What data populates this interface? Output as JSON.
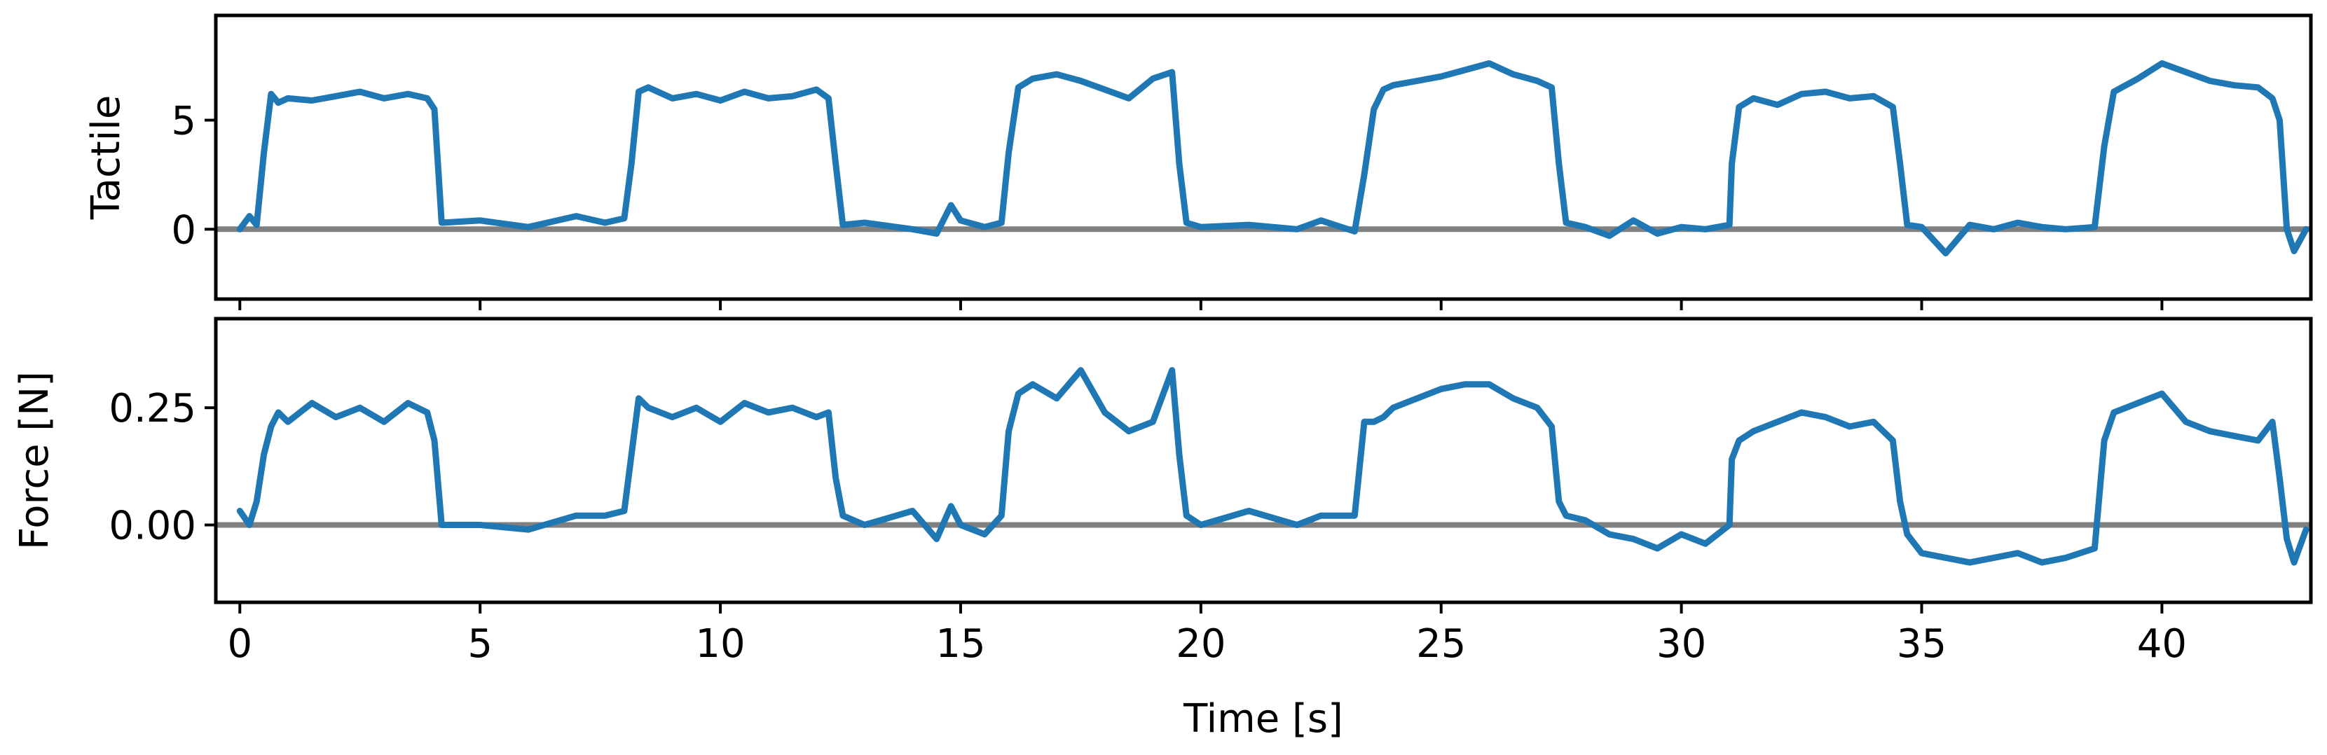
{
  "chart_data": [
    {
      "type": "line",
      "ylabel": "Tactile",
      "xlim": [
        -0.5,
        43.1
      ],
      "ylim": [
        -3.2,
        9.8
      ],
      "xticks": [
        0,
        5,
        10,
        15,
        20,
        25,
        30,
        35,
        40
      ],
      "yticks": [
        0,
        5
      ],
      "ytick_labels": [
        "0",
        "5"
      ],
      "show_xtick_labels": false,
      "grid": false,
      "colors": {
        "series": "#1f77b4",
        "baseline": "#808080"
      },
      "baseline": 0,
      "series": [
        {
          "x": [
            0.0,
            0.2,
            0.35,
            0.5,
            0.65,
            0.8,
            1.0,
            1.5,
            2.0,
            2.5,
            3.0,
            3.5,
            3.9,
            4.05,
            4.2,
            5.0,
            6.0,
            7.0,
            7.6,
            8.0,
            8.15,
            8.3,
            8.5,
            9.0,
            9.5,
            10.0,
            10.5,
            11.0,
            11.5,
            12.0,
            12.25,
            12.4,
            12.55,
            13.0,
            14.0,
            14.5,
            14.8,
            15.0,
            15.5,
            15.85,
            16.0,
            16.2,
            16.5,
            17.0,
            17.5,
            18.0,
            18.5,
            19.0,
            19.4,
            19.55,
            19.7,
            20.0,
            21.0,
            22.0,
            22.5,
            23.2,
            23.4,
            23.6,
            23.8,
            24.0,
            24.5,
            25.0,
            25.5,
            26.0,
            26.5,
            27.0,
            27.3,
            27.45,
            27.6,
            28.0,
            28.5,
            29.0,
            29.5,
            30.0,
            30.5,
            31.0,
            31.05,
            31.2,
            31.5,
            32.0,
            32.5,
            33.0,
            33.5,
            34.0,
            34.4,
            34.55,
            34.7,
            35.0,
            35.5,
            36.0,
            36.5,
            37.0,
            37.5,
            38.0,
            38.6,
            38.8,
            39.0,
            39.5,
            40.0,
            40.5,
            41.0,
            41.5,
            42.0,
            42.3,
            42.45,
            42.6,
            42.75,
            43.0
          ],
          "values": [
            0.0,
            0.6,
            0.2,
            3.5,
            6.2,
            5.8,
            6.0,
            5.9,
            6.1,
            6.3,
            6.0,
            6.2,
            6.0,
            5.5,
            0.3,
            0.4,
            0.1,
            0.6,
            0.3,
            0.5,
            3.0,
            6.3,
            6.5,
            6.0,
            6.2,
            5.9,
            6.3,
            6.0,
            6.1,
            6.4,
            6.0,
            3.0,
            0.2,
            0.3,
            0.0,
            -0.2,
            1.1,
            0.4,
            0.1,
            0.3,
            3.5,
            6.5,
            6.9,
            7.1,
            6.8,
            6.4,
            6.0,
            6.9,
            7.2,
            3.0,
            0.3,
            0.1,
            0.2,
            0.0,
            0.4,
            -0.1,
            2.5,
            5.5,
            6.4,
            6.6,
            6.8,
            7.0,
            7.3,
            7.6,
            7.1,
            6.8,
            6.5,
            3.0,
            0.3,
            0.1,
            -0.3,
            0.4,
            -0.2,
            0.1,
            0.0,
            0.2,
            3.0,
            5.6,
            6.0,
            5.7,
            6.2,
            6.3,
            6.0,
            6.1,
            5.6,
            3.0,
            0.2,
            0.1,
            -1.1,
            0.2,
            0.0,
            0.3,
            0.1,
            0.0,
            0.1,
            3.8,
            6.3,
            6.9,
            7.6,
            7.2,
            6.8,
            6.6,
            6.5,
            6.0,
            5.0,
            0.0,
            -1.0,
            0.0
          ]
        }
      ]
    },
    {
      "type": "line",
      "xlabel": "Time [s]",
      "ylabel": "Force [N]",
      "xlim": [
        -0.5,
        43.1
      ],
      "ylim": [
        -0.165,
        0.44
      ],
      "xticks": [
        0,
        5,
        10,
        15,
        20,
        25,
        30,
        35,
        40
      ],
      "xtick_labels": [
        "0",
        "5",
        "10",
        "15",
        "20",
        "25",
        "30",
        "35",
        "40"
      ],
      "yticks": [
        0.0,
        0.25
      ],
      "ytick_labels": [
        "0.00",
        "0.25"
      ],
      "grid": false,
      "colors": {
        "series": "#1f77b4",
        "baseline": "#808080"
      },
      "baseline": 0,
      "series": [
        {
          "x": [
            0.0,
            0.2,
            0.35,
            0.5,
            0.65,
            0.8,
            1.0,
            1.5,
            2.0,
            2.5,
            3.0,
            3.5,
            3.9,
            4.05,
            4.2,
            5.0,
            6.0,
            7.0,
            7.6,
            8.0,
            8.15,
            8.3,
            8.5,
            9.0,
            9.5,
            10.0,
            10.5,
            11.0,
            11.5,
            12.0,
            12.25,
            12.4,
            12.55,
            13.0,
            14.0,
            14.5,
            14.8,
            15.0,
            15.5,
            15.85,
            16.0,
            16.2,
            16.5,
            17.0,
            17.5,
            18.0,
            18.5,
            19.0,
            19.4,
            19.55,
            19.7,
            20.0,
            21.0,
            22.0,
            22.5,
            23.2,
            23.4,
            23.6,
            23.8,
            24.0,
            24.5,
            25.0,
            25.5,
            26.0,
            26.5,
            27.0,
            27.3,
            27.45,
            27.6,
            28.0,
            28.5,
            29.0,
            29.5,
            30.0,
            30.5,
            31.0,
            31.05,
            31.2,
            31.5,
            32.0,
            32.5,
            33.0,
            33.5,
            34.0,
            34.4,
            34.55,
            34.7,
            35.0,
            35.5,
            36.0,
            36.5,
            37.0,
            37.5,
            38.0,
            38.6,
            38.8,
            39.0,
            39.5,
            40.0,
            40.5,
            41.0,
            41.5,
            42.0,
            42.3,
            42.45,
            42.6,
            42.75,
            43.0
          ],
          "values": [
            0.03,
            0.0,
            0.05,
            0.15,
            0.21,
            0.24,
            0.22,
            0.26,
            0.23,
            0.25,
            0.22,
            0.26,
            0.24,
            0.18,
            0.0,
            0.0,
            -0.01,
            0.02,
            0.02,
            0.03,
            0.15,
            0.27,
            0.25,
            0.23,
            0.25,
            0.22,
            0.26,
            0.24,
            0.25,
            0.23,
            0.24,
            0.1,
            0.02,
            0.0,
            0.03,
            -0.03,
            0.04,
            0.0,
            -0.02,
            0.02,
            0.2,
            0.28,
            0.3,
            0.27,
            0.33,
            0.24,
            0.2,
            0.22,
            0.33,
            0.15,
            0.02,
            0.0,
            0.03,
            0.0,
            0.02,
            0.02,
            0.22,
            0.22,
            0.23,
            0.25,
            0.27,
            0.29,
            0.3,
            0.3,
            0.27,
            0.25,
            0.21,
            0.05,
            0.02,
            0.01,
            -0.02,
            -0.03,
            -0.05,
            -0.02,
            -0.04,
            0.0,
            0.14,
            0.18,
            0.2,
            0.22,
            0.24,
            0.23,
            0.21,
            0.22,
            0.18,
            0.05,
            -0.02,
            -0.06,
            -0.07,
            -0.08,
            -0.07,
            -0.06,
            -0.08,
            -0.07,
            -0.05,
            0.18,
            0.24,
            0.26,
            0.28,
            0.22,
            0.2,
            0.19,
            0.18,
            0.22,
            0.1,
            -0.03,
            -0.08,
            -0.01
          ]
        }
      ]
    }
  ]
}
